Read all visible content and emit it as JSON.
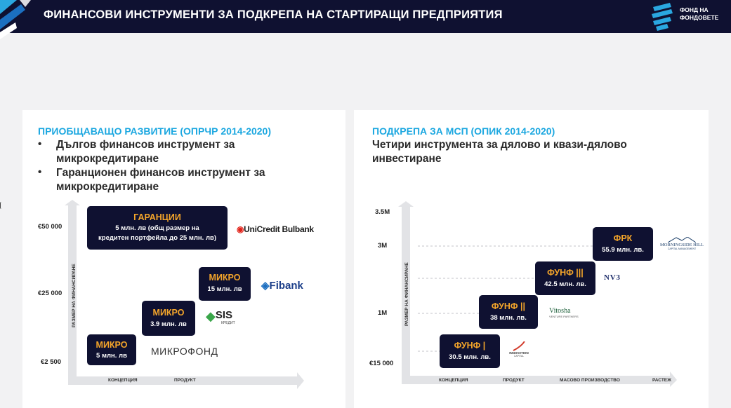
{
  "header": {
    "title": "ФИНАНСОВИ ИНСТРУМЕНТИ ЗА ПОДКРЕПА НА СТАРТИРАЩИ ПРЕДПРИЯТИЯ",
    "logo_line1": "ФОНД НА",
    "logo_line2": "ФОНДОВЕТЕ"
  },
  "left": {
    "title": "ПРИОБЩАВАЩО РАЗВИТИЕ (ОПРЧР 2014-2020)",
    "bullets": [
      {
        "line1": "Дългов финансов инструмент за",
        "line2": "микрокредитиране"
      },
      {
        "line1": "Гаранционен финансов инструмент за",
        "line2": "микрокредитиране"
      }
    ],
    "y_labels": [
      "€50 000",
      "€25 000",
      "€2 500"
    ],
    "y_axis_title": "РАЗМЕР НА ФИНАНСИРАНЕ",
    "x_labels": [
      "КОНЦЕПЦИЯ",
      "ПРОДУКТ"
    ],
    "boxes": [
      {
        "title": "ГАРАНЦИИ",
        "line1": "5 млн. лв (общ размер на",
        "line2": "кредитен портфейла до 25 млн. лв)"
      },
      {
        "title": "МИКРО",
        "line1": "15 млн. лв"
      },
      {
        "title": "МИКРО",
        "line1": "3.9 млн. лв"
      },
      {
        "title": "МИКРО",
        "line1": "5 млн. лв"
      }
    ],
    "banks": {
      "unicredit": "UniCredit Bulbank",
      "fibank": "Fibank",
      "sis": "SIS",
      "sis_sub": "КРЕДИТ",
      "mikrofond": "МИКРОФОНД"
    }
  },
  "right": {
    "title": "ПОДКРЕПА ЗА МСП (ОПИК 2014-2020)",
    "subtitle_line1": "Четири инструмента за дялово и квази-дялово",
    "subtitle_line2": "инвестиране",
    "y_labels": [
      "3.5M",
      "3M",
      "1M",
      "€15 000"
    ],
    "y_axis_title": "РАЗМЕР НА ФИНАНСИРАНЕ",
    "x_labels": [
      "КОНЦЕПЦИЯ",
      "ПРОДУКТ",
      "МАСОВО ПРОИЗВОДСТВО",
      "РАСТЕЖ"
    ],
    "boxes": [
      {
        "title": "ФРК",
        "line1": "55.9 млн. лв."
      },
      {
        "title": "ФУНФ |||",
        "line1": "42.5 млн. лв."
      },
      {
        "title": "ФУНФ ||",
        "line1": "38 млн. лв."
      },
      {
        "title": "ФУНФ |",
        "line1": "30.5 млн. лв."
      }
    ],
    "partners": {
      "morningside": "MORNINGSIDE HILL",
      "morningside_sub": "CAPITAL MANAGEMENT",
      "nv3": "NV3",
      "vitosha": "Vitosha",
      "vitosha_sub": "VENTURE PARTNERS",
      "innovation": "INNOVATION",
      "innovation_sub": "CAPITAL"
    }
  },
  "colors": {
    "navy": "#0f1131",
    "accent_orange": "#f4a52a",
    "accent_blue": "#1ba7e0"
  }
}
